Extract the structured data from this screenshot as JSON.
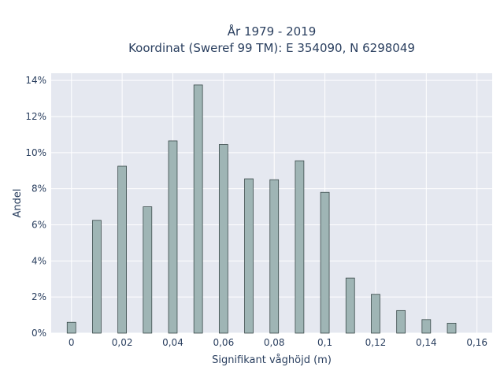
{
  "chart_data": {
    "type": "bar",
    "title_line1": "År 1979 - 2019",
    "title_line2": "Koordinat (Sweref 99 TM): E 354090, N 6298049",
    "xlabel": "Signifikant våghöjd (m)",
    "ylabel": "Andel",
    "x": [
      0,
      0.01,
      0.02,
      0.03,
      0.04,
      0.05,
      0.06,
      0.07,
      0.08,
      0.09,
      0.1,
      0.11,
      0.12,
      0.13,
      0.14,
      0.15
    ],
    "values": [
      0.6,
      6.25,
      9.25,
      7.0,
      10.65,
      13.75,
      10.45,
      8.55,
      8.5,
      9.55,
      7.8,
      3.05,
      2.15,
      1.25,
      0.75,
      0.55
    ],
    "xlim": [
      -0.008,
      0.166
    ],
    "ylim": [
      0,
      14.4
    ],
    "x_ticks": [
      0,
      0.02,
      0.04,
      0.06,
      0.08,
      0.1,
      0.12,
      0.14,
      0.16
    ],
    "x_tick_labels": [
      "0",
      "0,02",
      "0,04",
      "0,06",
      "0,08",
      "0,1",
      "0,12",
      "0,14",
      "0,16"
    ],
    "y_ticks": [
      0,
      2,
      4,
      6,
      8,
      10,
      12,
      14
    ],
    "y_tick_labels": [
      "0%",
      "2%",
      "4%",
      "6%",
      "8%",
      "10%",
      "12%",
      "14%"
    ],
    "grid": true,
    "bar_color": "#9fb5b5",
    "bar_edge_color": "#3a4a4a",
    "plot_bg": "#e5e8f0"
  }
}
